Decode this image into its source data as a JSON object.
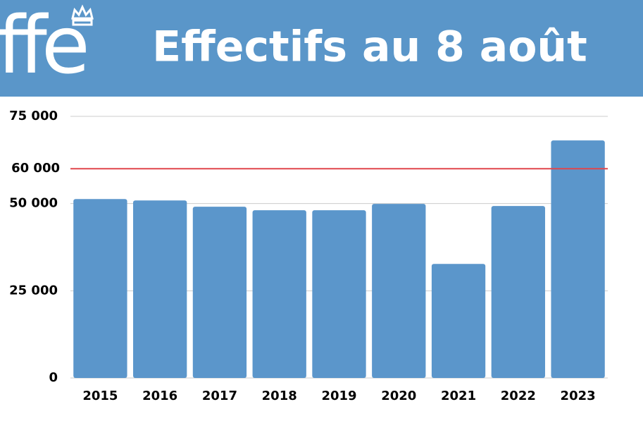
{
  "chart_data": {
    "type": "bar",
    "title": "Effectifs au 8 août",
    "logo": "ffe",
    "categories": [
      "2015",
      "2016",
      "2017",
      "2018",
      "2019",
      "2020",
      "2021",
      "2022",
      "2023"
    ],
    "values": [
      51300,
      50900,
      49100,
      48100,
      48100,
      49900,
      32700,
      49300,
      68100
    ],
    "color": "#5b96cb",
    "ylim": [
      0,
      75000
    ],
    "yticks": [
      0,
      {
        "value": 25000,
        "label": "25 000"
      },
      {
        "value": 50000,
        "label": "50 000"
      },
      {
        "value": 75000,
        "label": "75 000"
      }
    ],
    "grid": true,
    "reference_line": {
      "value": 60000,
      "label": "60 000",
      "color": "#e0474c"
    }
  }
}
